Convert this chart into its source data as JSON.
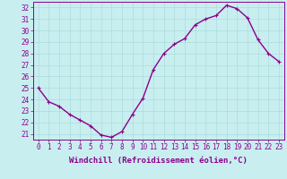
{
  "x": [
    0,
    1,
    2,
    3,
    4,
    5,
    6,
    7,
    8,
    9,
    10,
    11,
    12,
    13,
    14,
    15,
    16,
    17,
    18,
    19,
    20,
    21,
    22,
    23
  ],
  "y": [
    25.0,
    23.8,
    23.4,
    22.7,
    22.2,
    21.7,
    20.9,
    20.7,
    21.2,
    22.7,
    24.1,
    26.6,
    28.0,
    28.8,
    29.3,
    30.5,
    31.0,
    31.3,
    32.2,
    31.9,
    31.1,
    29.2,
    28.0,
    27.3
  ],
  "line_color": "#8B008B",
  "marker": "+",
  "marker_size": 3,
  "bg_color": "#c8eef0",
  "grid_color": "#aadddd",
  "xlabel": "Windchill (Refroidissement éolien,°C)",
  "xlabel_fontsize": 6.5,
  "ylabel_ticks": [
    21,
    22,
    23,
    24,
    25,
    26,
    27,
    28,
    29,
    30,
    31,
    32
  ],
  "ylim": [
    20.5,
    32.5
  ],
  "xlim": [
    -0.5,
    23.5
  ],
  "xticks": [
    0,
    1,
    2,
    3,
    4,
    5,
    6,
    7,
    8,
    9,
    10,
    11,
    12,
    13,
    14,
    15,
    16,
    17,
    18,
    19,
    20,
    21,
    22,
    23
  ],
  "tick_label_fontsize": 5.5,
  "line_width": 1.0
}
